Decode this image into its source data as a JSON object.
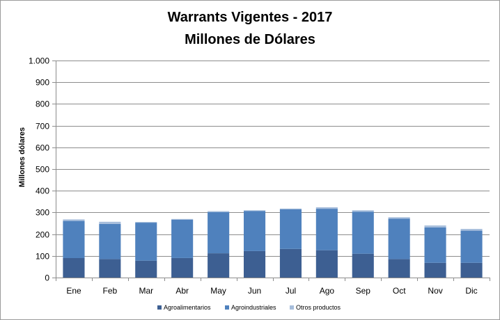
{
  "chart_data": {
    "type": "bar",
    "stacked": true,
    "title": [
      "Warrants Vigentes - 2017",
      "Millones de Dólares"
    ],
    "xlabel": "",
    "ylabel": "Millones dólares",
    "ylim": [
      0,
      1000
    ],
    "yticks": [
      0,
      100,
      200,
      300,
      400,
      500,
      600,
      700,
      800,
      900,
      1000
    ],
    "ytick_labels": [
      "0",
      "100",
      "200",
      "300",
      "400",
      "500",
      "600",
      "700",
      "800",
      "900",
      "1.000"
    ],
    "grid": true,
    "legend_position": "bottom",
    "categories": [
      "Ene",
      "Feb",
      "Mar",
      "Abr",
      "May",
      "Jun",
      "Jul",
      "Ago",
      "Sep",
      "Oct",
      "Nov",
      "Dic"
    ],
    "series": [
      {
        "name": "Agroalimentarios",
        "color": "#3d5f92",
        "values": [
          90,
          85,
          78,
          90,
          112,
          122,
          132,
          126,
          110,
          85,
          68,
          68
        ]
      },
      {
        "name": "Agroindustriales",
        "color": "#4f81bd",
        "values": [
          171,
          162,
          175,
          177,
          190,
          185,
          182,
          191,
          193,
          186,
          163,
          148
        ]
      },
      {
        "name": "Otros productos",
        "color": "#a6bddb",
        "values": [
          7,
          10,
          3,
          3,
          4,
          3,
          4,
          7,
          7,
          7,
          9,
          8
        ]
      }
    ]
  }
}
